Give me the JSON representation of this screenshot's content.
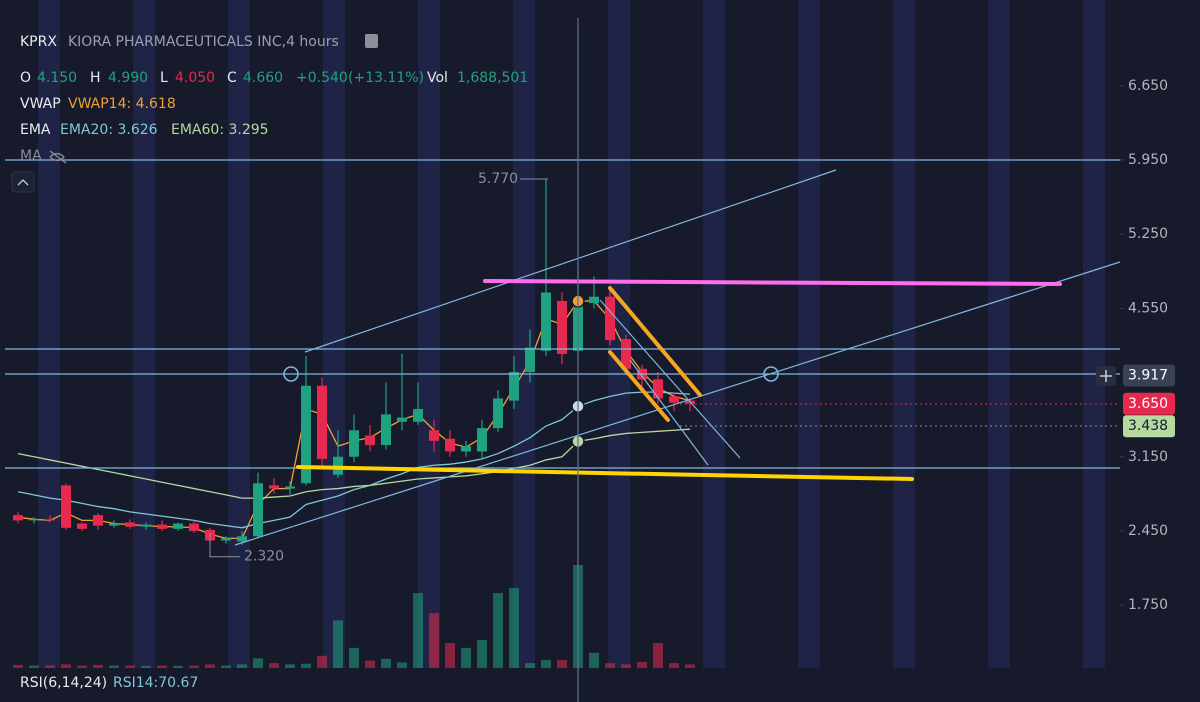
{
  "chart_data": {
    "type": "candlestick",
    "symbol": "KPRX",
    "title": "KIORA PHARMACEUTICALS INC,4 hours",
    "ohlc_legend": [
      {
        "label": "O",
        "value": "4.150"
      },
      {
        "label": "H",
        "value": "4.990"
      },
      {
        "label": "L",
        "value": "4.050"
      },
      {
        "label": "C",
        "value": "4.660"
      }
    ],
    "change": "+0.540",
    "change_pct": "(+13.11%)",
    "volume_legend": {
      "label": "Vol",
      "value": "1,688,501"
    },
    "ma_label": "MA",
    "rsi_legend": [
      "RSI(6,14,24)",
      "RSI14:70.67"
    ],
    "up_color": "#1fa27f",
    "down_color": "#e8294f",
    "ylim": [
      1.044,
      7.459
    ],
    "yticks": [
      {
        "value": 6.65,
        "label": "6.650"
      },
      {
        "value": 5.95,
        "label": "5.950"
      },
      {
        "value": 5.25,
        "label": "5.250"
      },
      {
        "value": 4.55,
        "label": "4.550"
      },
      {
        "value": 3.15,
        "label": "3.150"
      },
      {
        "value": 2.45,
        "label": "2.450"
      },
      {
        "value": 1.75,
        "label": "1.750"
      }
    ],
    "open": [
      2.6,
      2.55,
      2.56,
      2.88,
      2.52,
      2.6,
      2.5,
      2.53,
      2.49,
      2.51,
      2.47,
      2.52,
      2.46,
      2.36,
      2.35,
      2.4,
      2.88,
      2.85,
      2.9,
      3.82,
      2.98,
      3.15,
      3.35,
      3.26,
      3.48,
      3.48,
      3.4,
      3.32,
      3.2,
      3.2,
      3.42,
      3.68,
      3.95,
      4.15,
      4.62,
      4.15,
      4.6,
      4.66,
      4.26,
      3.98,
      3.88,
      3.72,
      3.68
    ],
    "high": [
      2.63,
      2.58,
      2.6,
      2.9,
      2.53,
      2.62,
      2.55,
      2.56,
      2.53,
      2.55,
      2.53,
      2.55,
      2.48,
      2.4,
      2.45,
      3.0,
      2.95,
      2.92,
      4.1,
      3.9,
      3.4,
      3.55,
      3.45,
      3.85,
      4.12,
      3.85,
      3.5,
      3.4,
      3.3,
      3.5,
      3.78,
      4.1,
      4.35,
      5.77,
      4.7,
      4.99,
      4.85,
      4.75,
      4.3,
      4.02,
      3.95,
      3.76,
      3.7
    ],
    "low": [
      2.52,
      2.52,
      2.53,
      2.46,
      2.45,
      2.46,
      2.48,
      2.47,
      2.46,
      2.45,
      2.45,
      2.43,
      2.34,
      2.33,
      2.32,
      2.38,
      2.8,
      2.78,
      2.88,
      3.05,
      2.95,
      3.1,
      3.2,
      3.22,
      3.4,
      3.45,
      3.2,
      3.15,
      3.15,
      3.12,
      3.38,
      3.6,
      3.85,
      4.1,
      4.02,
      4.05,
      4.55,
      4.2,
      3.92,
      3.8,
      3.65,
      3.58,
      3.58
    ],
    "close": [
      2.55,
      2.56,
      2.55,
      2.48,
      2.47,
      2.5,
      2.52,
      2.49,
      2.51,
      2.47,
      2.52,
      2.45,
      2.36,
      2.38,
      2.4,
      2.9,
      2.85,
      2.87,
      3.82,
      3.13,
      3.15,
      3.4,
      3.26,
      3.55,
      3.52,
      3.6,
      3.3,
      3.2,
      3.25,
      3.42,
      3.7,
      3.95,
      4.18,
      4.7,
      4.12,
      4.66,
      4.66,
      4.25,
      3.98,
      3.88,
      3.7,
      3.66,
      3.65
    ],
    "volume": [
      50000,
      40000,
      45000,
      60000,
      40000,
      50000,
      40000,
      40000,
      35000,
      40000,
      35000,
      40000,
      60000,
      40000,
      60000,
      160000,
      80000,
      60000,
      70000,
      200000,
      780000,
      330000,
      120000,
      150000,
      90000,
      1230000,
      900000,
      410000,
      330000,
      460000,
      1230000,
      1310000,
      80000,
      130000,
      130000,
      1688501,
      250000,
      80000,
      60000,
      100000,
      410000,
      80000,
      60000
    ],
    "series": [
      {
        "name": "VWAP",
        "legend": "VWAP14: 4.618",
        "color": "#f0a030",
        "values": [
          2.58,
          2.56,
          2.55,
          2.62,
          2.55,
          2.55,
          2.52,
          2.51,
          2.5,
          2.49,
          2.49,
          2.48,
          2.42,
          2.38,
          2.38,
          2.7,
          2.85,
          2.85,
          3.6,
          3.55,
          3.25,
          3.3,
          3.33,
          3.42,
          3.5,
          3.55,
          3.4,
          3.28,
          3.24,
          3.33,
          3.55,
          3.8,
          4.05,
          4.45,
          4.4,
          4.618,
          4.62,
          4.45,
          4.15,
          3.95,
          3.8,
          3.72,
          3.68
        ]
      },
      {
        "name": "EMA",
        "legend": "EMA20: 3.626",
        "color": "#7ec8d8",
        "values": [
          2.82,
          2.79,
          2.76,
          2.74,
          2.71,
          2.68,
          2.66,
          2.63,
          2.61,
          2.59,
          2.57,
          2.55,
          2.52,
          2.5,
          2.48,
          2.52,
          2.55,
          2.58,
          2.7,
          2.74,
          2.78,
          2.84,
          2.88,
          2.94,
          2.99,
          3.05,
          3.07,
          3.08,
          3.1,
          3.13,
          3.18,
          3.25,
          3.33,
          3.44,
          3.5,
          3.626,
          3.68,
          3.72,
          3.75,
          3.76,
          3.76,
          3.75,
          3.74
        ]
      },
      {
        "legend": "EMA60: 3.295",
        "color": "#b5d9a0",
        "values": [
          3.18,
          3.15,
          3.12,
          3.09,
          3.06,
          3.03,
          3.0,
          2.97,
          2.94,
          2.91,
          2.88,
          2.85,
          2.82,
          2.79,
          2.76,
          2.76,
          2.77,
          2.78,
          2.82,
          2.84,
          2.85,
          2.87,
          2.88,
          2.9,
          2.92,
          2.94,
          2.95,
          2.96,
          2.97,
          2.99,
          3.01,
          3.04,
          3.07,
          3.12,
          3.15,
          3.295,
          3.32,
          3.35,
          3.37,
          3.38,
          3.39,
          3.4,
          3.41
        ]
      }
    ],
    "annotations": [
      {
        "value": 5.77,
        "label": "5.770"
      },
      {
        "value": 2.32,
        "label": "2.320"
      }
    ],
    "price_labels": [
      {
        "value": 3.917,
        "label": "3.917",
        "color": "#3a4152"
      },
      {
        "value": 3.65,
        "label": "3.650",
        "color": "#e8294f"
      },
      {
        "value": 3.438,
        "label": "3.438",
        "color": "#b5d9a0"
      }
    ]
  }
}
